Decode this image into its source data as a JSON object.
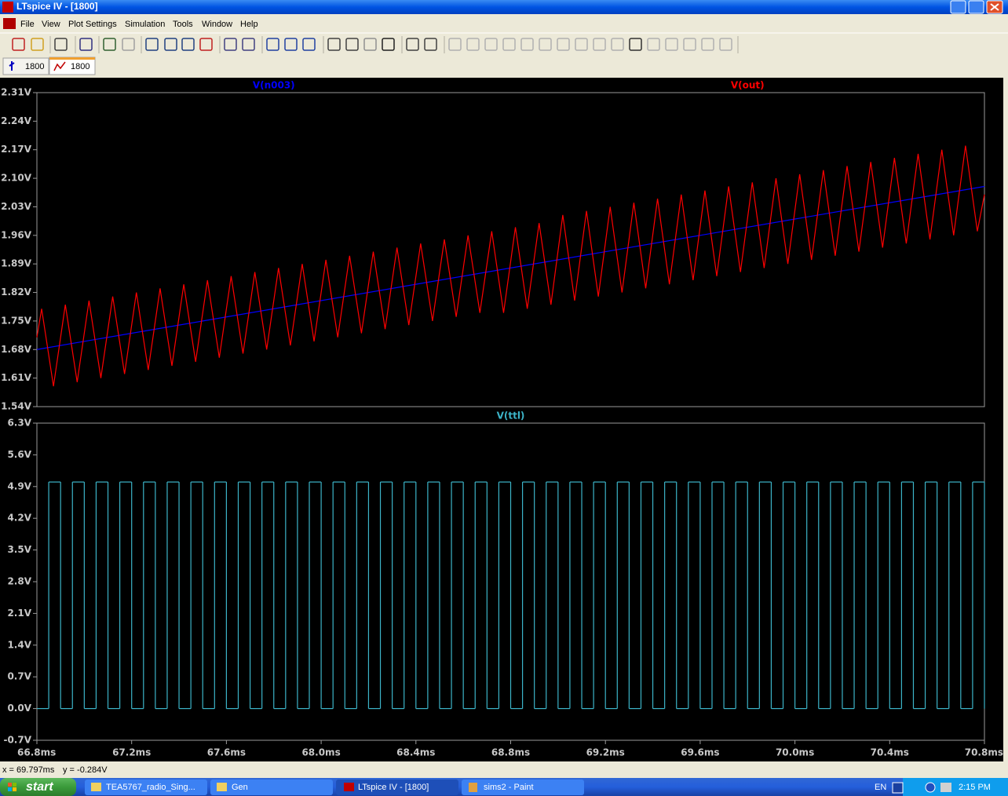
{
  "window": {
    "title": "LTspice IV - [1800]"
  },
  "menu": [
    "File",
    "View",
    "Plot Settings",
    "Simulation",
    "Tools",
    "Window",
    "Help"
  ],
  "tabs": [
    "1800",
    "1800"
  ],
  "chart_data": [
    {
      "type": "line",
      "xlim": [
        66.8,
        70.8
      ],
      "ylim": [
        1.54,
        2.31
      ],
      "yticks": [
        {
          "value": 1.54,
          "label": "1.54V"
        },
        {
          "value": 1.61,
          "label": "1.61V"
        },
        {
          "value": 1.68,
          "label": "1.68V"
        },
        {
          "value": 1.75,
          "label": "1.75V"
        },
        {
          "value": 1.82,
          "label": "1.82V"
        },
        {
          "value": 1.89,
          "label": "1.89V"
        },
        {
          "value": 1.96,
          "label": "1.96V"
        },
        {
          "value": 2.03,
          "label": "2.03V"
        },
        {
          "value": 2.1,
          "label": "2.10V"
        },
        {
          "value": 2.17,
          "label": "2.17V"
        },
        {
          "value": 2.24,
          "label": "2.24V"
        },
        {
          "value": 2.31,
          "label": "2.31V"
        }
      ],
      "series": [
        {
          "name": "V(n003)",
          "color": "#0000ff",
          "x": [
            66.8,
            70.8
          ],
          "values": [
            1.68,
            2.08
          ]
        },
        {
          "name": "V(out)",
          "color": "#ff0000",
          "x": [
            66.8,
            66.82,
            66.87,
            66.92,
            66.97,
            67.02,
            67.07,
            67.12,
            67.17,
            67.22,
            67.27,
            67.32,
            67.37,
            67.42,
            67.47,
            67.52,
            67.57,
            67.62,
            67.67,
            67.72,
            67.77,
            67.82,
            67.87,
            67.92,
            67.97,
            68.02,
            68.07,
            68.12,
            68.17,
            68.22,
            68.27,
            68.32,
            68.37,
            68.42,
            68.47,
            68.52,
            68.57,
            68.62,
            68.67,
            68.72,
            68.77,
            68.82,
            68.87,
            68.92,
            68.97,
            69.02,
            69.07,
            69.12,
            69.17,
            69.22,
            69.27,
            69.32,
            69.37,
            69.42,
            69.47,
            69.52,
            69.57,
            69.62,
            69.67,
            69.72,
            69.77,
            69.82,
            69.87,
            69.92,
            69.97,
            70.02,
            70.07,
            70.12,
            70.17,
            70.22,
            70.27,
            70.32,
            70.37,
            70.42,
            70.47,
            70.52,
            70.57,
            70.62,
            70.67,
            70.72,
            70.77,
            70.8
          ],
          "values": [
            1.71,
            1.78,
            1.59,
            1.79,
            1.6,
            1.8,
            1.61,
            1.81,
            1.62,
            1.82,
            1.63,
            1.83,
            1.64,
            1.84,
            1.65,
            1.85,
            1.66,
            1.86,
            1.67,
            1.87,
            1.68,
            1.88,
            1.69,
            1.89,
            1.7,
            1.9,
            1.71,
            1.91,
            1.72,
            1.92,
            1.73,
            1.93,
            1.74,
            1.94,
            1.75,
            1.95,
            1.76,
            1.96,
            1.77,
            1.97,
            1.77,
            1.98,
            1.78,
            1.99,
            1.79,
            2.01,
            1.8,
            2.02,
            1.81,
            2.03,
            1.82,
            2.04,
            1.83,
            2.05,
            1.84,
            2.06,
            1.85,
            2.07,
            1.86,
            2.08,
            1.87,
            2.09,
            1.88,
            2.1,
            1.89,
            2.11,
            1.9,
            2.12,
            1.91,
            2.13,
            1.92,
            2.14,
            1.93,
            2.15,
            1.94,
            2.16,
            1.95,
            2.17,
            1.96,
            2.18,
            1.97,
            2.06
          ]
        }
      ]
    },
    {
      "type": "step",
      "xlim": [
        66.8,
        70.8
      ],
      "xticks": [
        {
          "value": 66.8,
          "label": "66.8ms"
        },
        {
          "value": 67.2,
          "label": "67.2ms"
        },
        {
          "value": 67.6,
          "label": "67.6ms"
        },
        {
          "value": 68.0,
          "label": "68.0ms"
        },
        {
          "value": 68.4,
          "label": "68.4ms"
        },
        {
          "value": 68.8,
          "label": "68.8ms"
        },
        {
          "value": 69.2,
          "label": "69.2ms"
        },
        {
          "value": 69.6,
          "label": "69.6ms"
        },
        {
          "value": 70.0,
          "label": "70.0ms"
        },
        {
          "value": 70.4,
          "label": "70.4ms"
        },
        {
          "value": 70.8,
          "label": "70.8ms"
        }
      ],
      "ylim": [
        -0.7,
        6.3
      ],
      "yticks": [
        {
          "value": -0.7,
          "label": "-0.7V"
        },
        {
          "value": 0,
          "label": "0.0V"
        },
        {
          "value": 0.7,
          "label": "0.7V"
        },
        {
          "value": 1.4,
          "label": "1.4V"
        },
        {
          "value": 2.1,
          "label": "2.1V"
        },
        {
          "value": 2.8,
          "label": "2.8V"
        },
        {
          "value": 3.5,
          "label": "3.5V"
        },
        {
          "value": 4.2,
          "label": "4.2V"
        },
        {
          "value": 4.9,
          "label": "4.9V"
        },
        {
          "value": 5.6,
          "label": "5.6V"
        },
        {
          "value": 6.3,
          "label": "6.3V"
        }
      ],
      "series": [
        {
          "name": "V(ttl)",
          "color": "#3cb4c8",
          "x": [
            66.8,
            66.85,
            66.9,
            66.95,
            67,
            67.05,
            67.1,
            67.15,
            67.2,
            67.25,
            67.3,
            67.35,
            67.4,
            67.45,
            67.5,
            67.55,
            67.6,
            67.65,
            67.7,
            67.75,
            67.8,
            67.85,
            67.9,
            67.95,
            68,
            68.05,
            68.1,
            68.15,
            68.2,
            68.25,
            68.3,
            68.35,
            68.4,
            68.45,
            68.5,
            68.55,
            68.6,
            68.65,
            68.7,
            68.75,
            68.8,
            68.85,
            68.9,
            68.95,
            69,
            69.05,
            69.1,
            69.15,
            69.2,
            69.25,
            69.3,
            69.35,
            69.4,
            69.45,
            69.5,
            69.55,
            69.6,
            69.65,
            69.7,
            69.75,
            69.8,
            69.85,
            69.9,
            69.95,
            70,
            70.05,
            70.1,
            70.15,
            70.2,
            70.25,
            70.3,
            70.35,
            70.4,
            70.45,
            70.5,
            70.55,
            70.6,
            70.65,
            70.7,
            70.75,
            70.8
          ],
          "values": [
            0,
            5,
            0,
            5,
            0,
            5,
            0,
            5,
            0,
            5,
            0,
            5,
            0,
            5,
            0,
            5,
            0,
            5,
            0,
            5,
            0,
            5,
            0,
            5,
            0,
            5,
            0,
            5,
            0,
            5,
            0,
            5,
            0,
            5,
            0,
            5,
            0,
            5,
            0,
            5,
            0,
            5,
            0,
            5,
            0,
            5,
            0,
            5,
            0,
            5,
            0,
            5,
            0,
            5,
            0,
            5,
            0,
            5,
            0,
            5,
            0,
            5,
            0,
            5,
            0,
            5,
            0,
            5,
            0,
            5,
            0,
            5,
            0,
            5,
            0,
            5,
            0,
            5,
            0,
            5,
            0
          ]
        }
      ]
    }
  ],
  "status": {
    "x": "x = 69.797ms",
    "y": "y = -0.284V"
  },
  "taskbar": {
    "start": "start",
    "items": [
      "TEA5767_radio_Sing...",
      "Gen",
      "LTspice IV - [1800]",
      "sims2 - Paint"
    ],
    "language": "EN",
    "clock": "2:15 PM"
  }
}
